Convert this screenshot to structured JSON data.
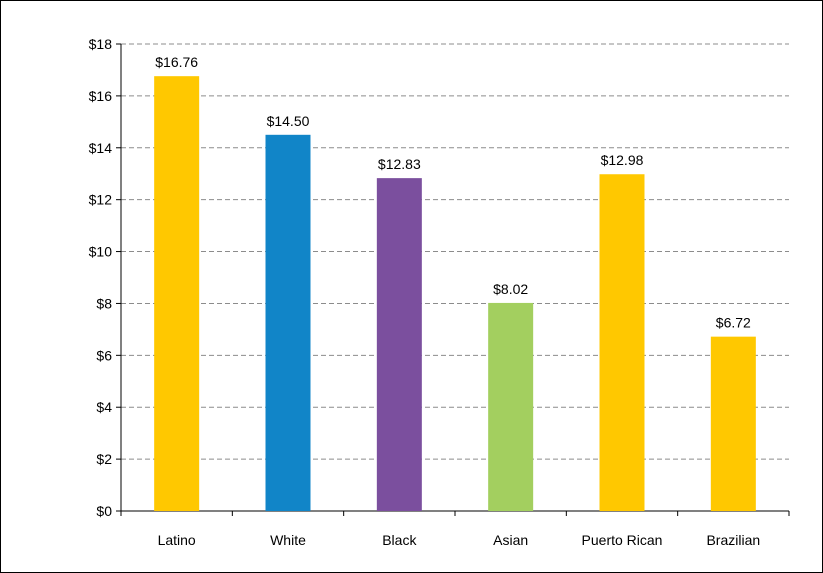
{
  "chart_data": {
    "type": "bar",
    "categories": [
      "Latino",
      "White",
      "Black",
      "Asian",
      "Puerto Rican",
      "Brazilian"
    ],
    "values": [
      16.76,
      14.5,
      12.83,
      8.02,
      12.98,
      6.72
    ],
    "data_labels": [
      "$16.76",
      "$14.50",
      "$12.83",
      "$8.02",
      "$12.98",
      "$6.72"
    ],
    "bar_colors": [
      "#FFC800",
      "#1185C8",
      "#7B4F9E",
      "#A3CF5F",
      "#FFC800",
      "#FFC800"
    ],
    "ylim": [
      0,
      18
    ],
    "yticks": [
      0,
      2,
      4,
      6,
      8,
      10,
      12,
      14,
      16,
      18
    ],
    "ytick_labels": [
      "$0",
      "$2",
      "$4",
      "$6",
      "$8",
      "$10",
      "$12",
      "$14",
      "$16",
      "$18"
    ],
    "grid": true,
    "title": "",
    "xlabel": "",
    "ylabel": ""
  }
}
